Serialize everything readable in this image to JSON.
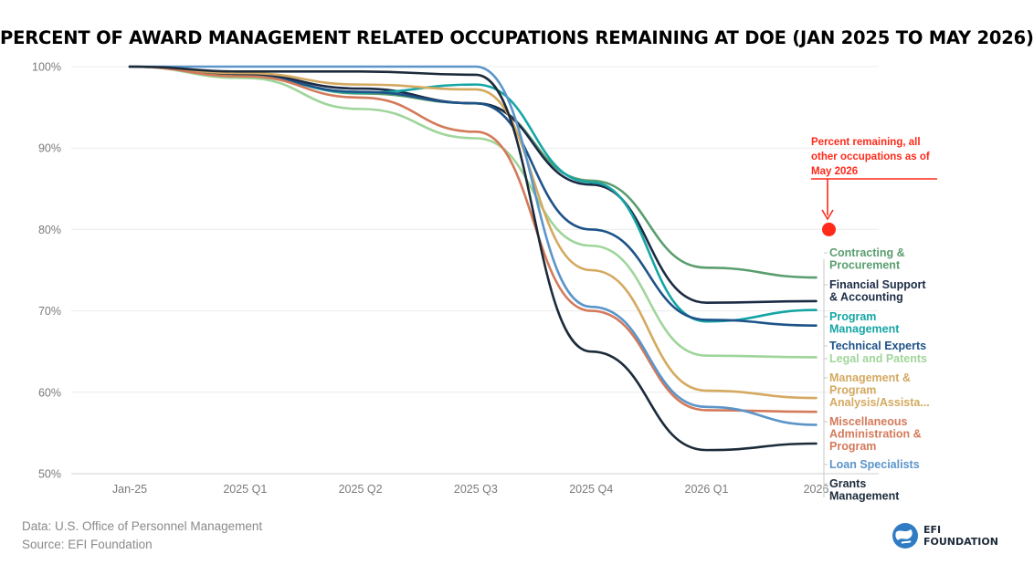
{
  "title": "PERCENT OF AWARD MANAGEMENT RELATED OCCUPATIONS REMAINING AT DOE (JAN 2025 TO MAY 2026)",
  "footer": {
    "data_line": "Data: U.S. Office of Personnel Management",
    "source_line": "Source: EFI Foundation"
  },
  "logo": {
    "line1": "EFI",
    "line2": "FOUNDATION",
    "icon": "globe-icon"
  },
  "chart_data": {
    "type": "line",
    "x_labels": [
      "Jan-25",
      "2025 Q1",
      "2025 Q2",
      "2025 Q3",
      "2025 Q4",
      "2026 Q1",
      "2026"
    ],
    "x": [
      0,
      1,
      2,
      3,
      4,
      5,
      5.95
    ],
    "ylim": [
      50,
      100
    ],
    "y_ticks": [
      50,
      60,
      70,
      80,
      90,
      100
    ],
    "y_tick_labels": [
      "50%",
      "60%",
      "70%",
      "80%",
      "90%",
      "100%"
    ],
    "grid": true,
    "series": [
      {
        "name": "Contracting & Procurement",
        "color": "#5a9e6f",
        "points": [
          [
            0,
            100
          ],
          [
            1,
            99.2
          ],
          [
            2,
            96.7
          ],
          [
            3,
            95.5
          ],
          [
            4,
            86
          ],
          [
            5,
            75.3
          ],
          [
            5.95,
            74.1
          ]
        ]
      },
      {
        "name": "Financial Support & Accounting",
        "color": "#1c2b45",
        "points": [
          [
            0,
            100
          ],
          [
            1,
            99
          ],
          [
            2,
            97.3
          ],
          [
            3,
            95.5
          ],
          [
            4,
            85.5
          ],
          [
            5,
            71
          ],
          [
            5.95,
            71.2
          ]
        ]
      },
      {
        "name": "Program Management",
        "color": "#16a5a5",
        "points": [
          [
            0,
            100
          ],
          [
            1,
            98.8
          ],
          [
            2,
            96.8
          ],
          [
            3,
            97.8
          ],
          [
            4,
            85.8
          ],
          [
            5,
            68.7
          ],
          [
            5.95,
            70.1
          ]
        ]
      },
      {
        "name": "Technical Experts",
        "color": "#1e5389",
        "points": [
          [
            0,
            100
          ],
          [
            1,
            98.8
          ],
          [
            2,
            96.9
          ],
          [
            3,
            95.5
          ],
          [
            4,
            80
          ],
          [
            5,
            68.9
          ],
          [
            5.95,
            68.2
          ]
        ]
      },
      {
        "name": "Legal and Patents",
        "color": "#9fd59a",
        "points": [
          [
            0,
            100
          ],
          [
            1,
            98.6
          ],
          [
            2,
            94.8
          ],
          [
            3,
            91.2
          ],
          [
            4,
            78
          ],
          [
            5,
            64.5
          ],
          [
            5.95,
            64.3
          ]
        ]
      },
      {
        "name": "Management & Program Analysis/Assista...",
        "color": "#d4a960",
        "points": [
          [
            0,
            100
          ],
          [
            1,
            99.2
          ],
          [
            2,
            97.8
          ],
          [
            3,
            97.2
          ],
          [
            4,
            75
          ],
          [
            5,
            60.2
          ],
          [
            5.95,
            59.3
          ]
        ]
      },
      {
        "name": "Miscellaneous Administration & Program",
        "color": "#d37a5a",
        "points": [
          [
            0,
            100
          ],
          [
            1,
            98.8
          ],
          [
            2,
            96.2
          ],
          [
            3,
            92
          ],
          [
            4,
            70
          ],
          [
            5,
            57.8
          ],
          [
            5.95,
            57.6
          ]
        ]
      },
      {
        "name": "Loan Specialists",
        "color": "#5b95c9",
        "points": [
          [
            0,
            100
          ],
          [
            1,
            100
          ],
          [
            2,
            100
          ],
          [
            3,
            100
          ],
          [
            4,
            70.5
          ],
          [
            5,
            58.2
          ],
          [
            5.95,
            56
          ]
        ]
      },
      {
        "name": "Grants Management",
        "color": "#1c2b3a",
        "points": [
          [
            0,
            100
          ],
          [
            1,
            99.4
          ],
          [
            2,
            99.4
          ],
          [
            3,
            99
          ],
          [
            4,
            65
          ],
          [
            5,
            52.9
          ],
          [
            5.95,
            53.7
          ]
        ]
      }
    ],
    "reference_point": {
      "x": 5.95,
      "y": 80,
      "color": "#ff2a1a"
    },
    "annotation": {
      "lines": [
        "Percent remaining, all",
        "other occupations as of",
        "May 2026"
      ],
      "color": "#ff2a1a"
    },
    "labels": [
      {
        "series": 0,
        "lines": [
          "Contracting &",
          "Procurement"
        ]
      },
      {
        "series": 1,
        "lines": [
          "Financial Support",
          "& Accounting"
        ]
      },
      {
        "series": 2,
        "lines": [
          "Program",
          "Management"
        ]
      },
      {
        "series": 3,
        "lines": [
          "Technical Experts"
        ]
      },
      {
        "series": 4,
        "lines": [
          "Legal and Patents"
        ]
      },
      {
        "series": 5,
        "lines": [
          "Management &",
          "Program",
          "Analysis/Assista..."
        ]
      },
      {
        "series": 6,
        "lines": [
          "Miscellaneous",
          "Administration &",
          "Program"
        ]
      },
      {
        "series": 7,
        "lines": [
          "Loan Specialists"
        ]
      },
      {
        "series": 8,
        "lines": [
          "Grants",
          "Management"
        ]
      }
    ]
  }
}
